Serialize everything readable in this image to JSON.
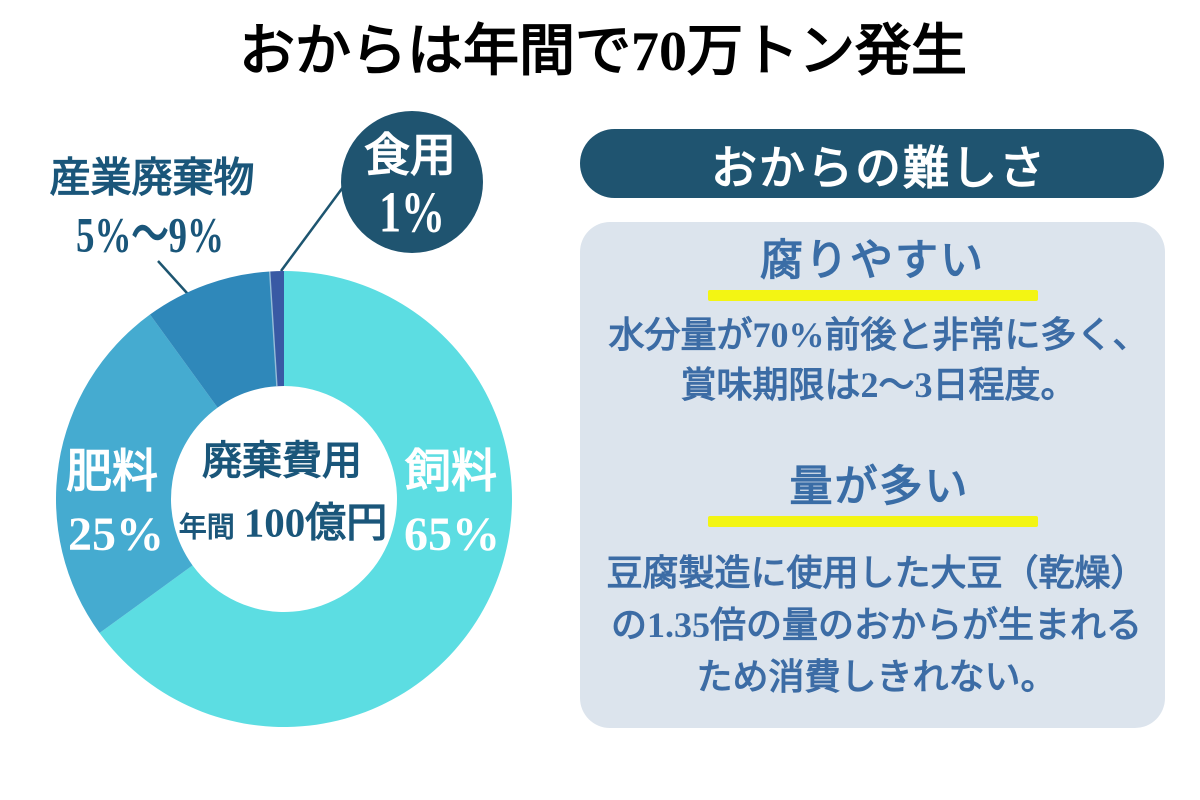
{
  "title": "おからは年間で70万トン発生",
  "colors": {
    "background": "#ffffff",
    "title_text": "#000000",
    "label_teal": "#1a567a",
    "leader_line": "#1d5570",
    "callout_circle": "#1f5470",
    "slice_text": "#ffffff",
    "panel_header_bg": "#1f5470",
    "panel_header_text": "#ffffff",
    "panel_box_bg": "#dce4ed",
    "heading_blue": "#3a6da6",
    "body_blue": "#3c6ca5",
    "underline_yellow": "#f3f513"
  },
  "chart_data": {
    "type": "pie",
    "subtype": "donut",
    "title": "おからは年間で70万トン発生",
    "unit": "%",
    "start_angle_deg": 0,
    "direction": "clockwise",
    "segments": [
      {
        "label": "飼料",
        "pct_label": "65%",
        "value": 65,
        "color": "#5cdde2",
        "label_placement": "inside"
      },
      {
        "label": "肥料",
        "pct_label": "25%",
        "value": 25,
        "color": "#45abd0",
        "label_placement": "inside"
      },
      {
        "label": "産業廃棄物",
        "pct_label": "5%〜9%",
        "value": 9,
        "color": "#2f88ba",
        "label_placement": "outside"
      },
      {
        "label": "食用",
        "pct_label": "1%",
        "value": 1,
        "color": "#3959a4",
        "label_placement": "callout"
      }
    ],
    "center_label": {
      "title": "廃棄費用",
      "prefix": "年間",
      "value": "100億円"
    }
  },
  "panel": {
    "header": "おからの難しさ",
    "sections": [
      {
        "heading": "腐りやすい",
        "body": "水分量が70%前後と非常に多く、\n賞味期限は2〜3日程度。"
      },
      {
        "heading": "量が多い",
        "body": "豆腐製造に使用した大豆（乾燥）\nの1.35倍の量のおからが生まれる\nため消費しきれない。"
      }
    ]
  }
}
